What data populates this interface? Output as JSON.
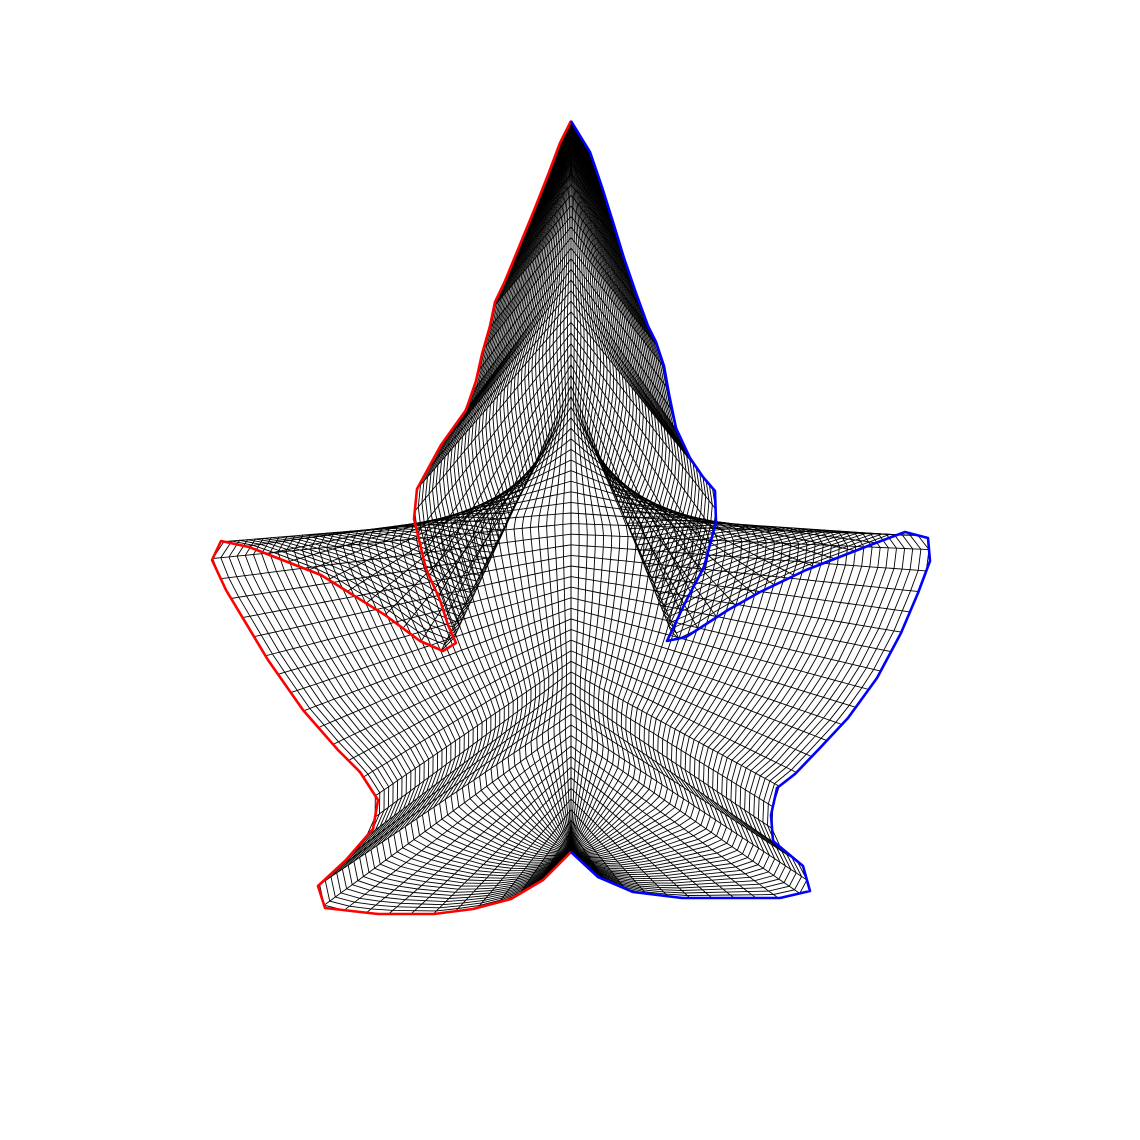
{
  "figure": {
    "colors": {
      "background": "#ffffff",
      "grid": "#000000",
      "left_boundary": "#ff0000",
      "right_boundary": "#0000ff"
    },
    "mesh": {
      "columns": 44,
      "rows": 70
    }
  }
}
